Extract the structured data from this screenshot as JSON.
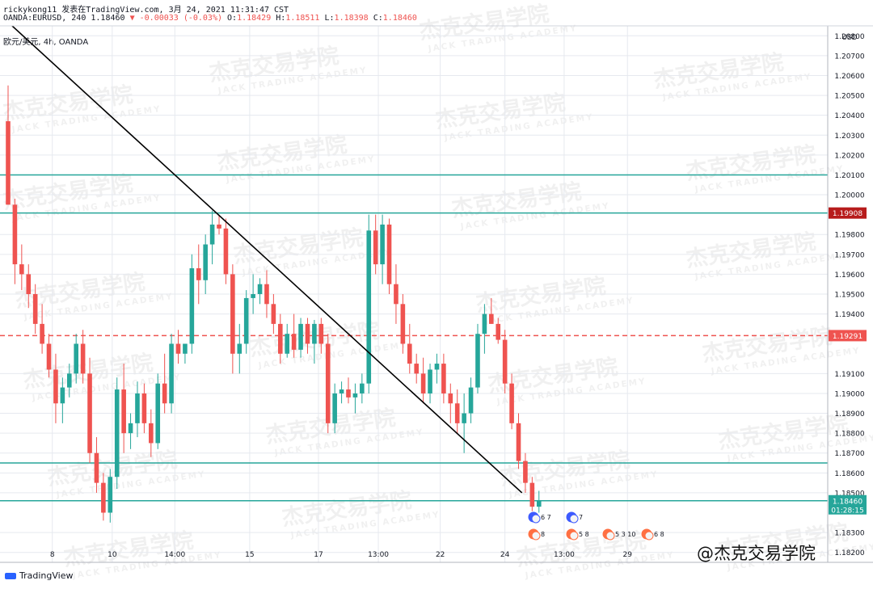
{
  "header": {
    "line1": "rickykong11 发表在TradingView.com, 3月 24, 2021 11:31:47 CST",
    "symbol": "OANDA:EURUSD, 240",
    "last": "1.18460",
    "change": "-0.00033 (-0.03%)",
    "open_label": "O:",
    "open": "1.18429",
    "high_label": "H:",
    "high": "1.18511",
    "low_label": "L:",
    "low": "1.18398",
    "close_label": "C:",
    "close": "1.18460",
    "legend": "欧元/美元, 4h, OANDA"
  },
  "branding": {
    "platform": "TradingView",
    "handle": "@杰克交易学院"
  },
  "watermark": {
    "cn": "杰克交易学院",
    "en": "JACK TRADING ACADEMY"
  },
  "colors": {
    "up": "#26a69a",
    "down": "#ef5350",
    "level": "#26a69a",
    "dashed": "#ef5350",
    "trendline": "#000000",
    "grid": "#e6e9ef"
  },
  "chart_data": {
    "type": "candlestick",
    "ylim": [
      1.1815,
      1.2085
    ],
    "currency_label": "USD",
    "y_ticks": [
      "1.20800",
      "1.20700",
      "1.20600",
      "1.20500",
      "1.20400",
      "1.20300",
      "1.20200",
      "1.20100",
      "1.20000",
      "1.19800",
      "1.19700",
      "1.19600",
      "1.19500",
      "1.19400",
      "1.19100",
      "1.19000",
      "1.18900",
      "1.18800",
      "1.18700",
      "1.18600",
      "1.18500",
      "1.18300",
      "1.18200"
    ],
    "x_ticks": [
      "8",
      "10",
      "14:00",
      "15",
      "17",
      "13:00",
      "22",
      "24",
      "13:00",
      "29"
    ],
    "countdown": "01:28:15",
    "price_levels": [
      {
        "value": 1.201,
        "style": "solid",
        "label": ""
      },
      {
        "value": 1.19908,
        "style": "solid",
        "label": "1.19908"
      },
      {
        "value": 1.19291,
        "style": "dashed",
        "label": "1.19291"
      },
      {
        "value": 1.1865,
        "style": "solid",
        "label": ""
      },
      {
        "value": 1.1846,
        "style": "solid",
        "label": "1.18460"
      }
    ],
    "trendline": {
      "from": [
        -1.0,
        1.209
      ],
      "to": [
        75.5,
        1.185
      ]
    },
    "candles": [
      [
        1.2037,
        1.2055,
        1.1995,
        1.1995
      ],
      [
        1.1995,
        1.1998,
        1.1955,
        1.1965
      ],
      [
        1.1965,
        1.1975,
        1.1952,
        1.196
      ],
      [
        1.196,
        1.1965,
        1.1943,
        1.195
      ],
      [
        1.195,
        1.1955,
        1.193,
        1.1935
      ],
      [
        1.1935,
        1.1945,
        1.192,
        1.1925
      ],
      [
        1.1925,
        1.193,
        1.1908,
        1.1912
      ],
      [
        1.1912,
        1.192,
        1.1885,
        1.1895
      ],
      [
        1.1895,
        1.1908,
        1.1885,
        1.1903
      ],
      [
        1.1903,
        1.1915,
        1.1898,
        1.191
      ],
      [
        1.191,
        1.193,
        1.1905,
        1.1925
      ],
      [
        1.1925,
        1.1932,
        1.1905,
        1.191
      ],
      [
        1.191,
        1.1918,
        1.1865,
        1.187
      ],
      [
        1.187,
        1.1878,
        1.185,
        1.1855
      ],
      [
        1.1855,
        1.186,
        1.1836,
        1.184
      ],
      [
        1.184,
        1.1862,
        1.1835,
        1.1858
      ],
      [
        1.1858,
        1.1908,
        1.1852,
        1.1902
      ],
      [
        1.1902,
        1.1915,
        1.187,
        1.188
      ],
      [
        1.188,
        1.189,
        1.1872,
        1.1885
      ],
      [
        1.1885,
        1.1906,
        1.1878,
        1.19
      ],
      [
        1.19,
        1.1905,
        1.188,
        1.1885
      ],
      [
        1.1885,
        1.1892,
        1.1868,
        1.1875
      ],
      [
        1.1875,
        1.191,
        1.1872,
        1.1905
      ],
      [
        1.1905,
        1.192,
        1.189,
        1.1895
      ],
      [
        1.1895,
        1.193,
        1.189,
        1.1925
      ],
      [
        1.1925,
        1.1932,
        1.1915,
        1.192
      ],
      [
        1.192,
        1.1925,
        1.1915,
        1.1925
      ],
      [
        1.1925,
        1.197,
        1.192,
        1.1963
      ],
      [
        1.1963,
        1.1975,
        1.1945,
        1.1957
      ],
      [
        1.1957,
        1.198,
        1.195,
        1.1975
      ],
      [
        1.1975,
        1.1992,
        1.1965,
        1.1985
      ],
      [
        1.1985,
        1.199,
        1.198,
        1.1983
      ],
      [
        1.1983,
        1.1988,
        1.1955,
        1.196
      ],
      [
        1.196,
        1.1965,
        1.191,
        1.192
      ],
      [
        1.192,
        1.1935,
        1.191,
        1.1925
      ],
      [
        1.1925,
        1.1952,
        1.192,
        1.1948
      ],
      [
        1.1948,
        1.196,
        1.194,
        1.195
      ],
      [
        1.195,
        1.1958,
        1.1945,
        1.1955
      ],
      [
        1.1955,
        1.1962,
        1.1938,
        1.1945
      ],
      [
        1.1945,
        1.195,
        1.193,
        1.1935
      ],
      [
        1.1935,
        1.194,
        1.1915,
        1.192
      ],
      [
        1.192,
        1.1935,
        1.1918,
        1.193
      ],
      [
        1.193,
        1.194,
        1.1918,
        1.1922
      ],
      [
        1.1922,
        1.1938,
        1.1918,
        1.1935
      ],
      [
        1.1935,
        1.1938,
        1.192,
        1.1925
      ],
      [
        1.1925,
        1.1937,
        1.1915,
        1.1935
      ],
      [
        1.1935,
        1.1938,
        1.192,
        1.1925
      ],
      [
        1.1925,
        1.193,
        1.188,
        1.1885
      ],
      [
        1.1885,
        1.1905,
        1.188,
        1.19
      ],
      [
        1.19,
        1.1906,
        1.1895,
        1.1902
      ],
      [
        1.1902,
        1.1908,
        1.1895,
        1.1898
      ],
      [
        1.1898,
        1.1905,
        1.189,
        1.19
      ],
      [
        1.19,
        1.191,
        1.1895,
        1.1905
      ],
      [
        1.1905,
        1.199,
        1.19,
        1.1982
      ],
      [
        1.1982,
        1.199,
        1.196,
        1.1965
      ],
      [
        1.1965,
        1.199,
        1.1955,
        1.1985
      ],
      [
        1.1985,
        1.1988,
        1.195,
        1.1955
      ],
      [
        1.1955,
        1.1965,
        1.1935,
        1.1945
      ],
      [
        1.1945,
        1.195,
        1.192,
        1.1925
      ],
      [
        1.1925,
        1.1935,
        1.191,
        1.1915
      ],
      [
        1.1915,
        1.192,
        1.1905,
        1.191
      ],
      [
        1.191,
        1.1918,
        1.1895,
        1.19
      ],
      [
        1.19,
        1.1915,
        1.1895,
        1.1912
      ],
      [
        1.1912,
        1.192,
        1.1905,
        1.1915
      ],
      [
        1.1915,
        1.192,
        1.1895,
        1.19
      ],
      [
        1.19,
        1.1905,
        1.1885,
        1.1895
      ],
      [
        1.1895,
        1.1902,
        1.188,
        1.1885
      ],
      [
        1.1885,
        1.19,
        1.187,
        1.189
      ],
      [
        1.189,
        1.1908,
        1.1885,
        1.1903
      ],
      [
        1.1903,
        1.1935,
        1.19,
        1.193
      ],
      [
        1.193,
        1.1945,
        1.192,
        1.194
      ],
      [
        1.194,
        1.1948,
        1.1935,
        1.1935
      ],
      [
        1.1935,
        1.1938,
        1.1925,
        1.1927
      ],
      [
        1.1927,
        1.1932,
        1.19,
        1.1905
      ],
      [
        1.1905,
        1.191,
        1.1882,
        1.1885
      ],
      [
        1.1885,
        1.189,
        1.1862,
        1.1866
      ],
      [
        1.1866,
        1.187,
        1.185,
        1.1855
      ],
      [
        1.1855,
        1.1858,
        1.1838,
        1.1843
      ],
      [
        1.1843,
        1.1851,
        1.184,
        1.1846
      ]
    ],
    "event_markers": [
      {
        "flags": "EU",
        "text": "6 7"
      },
      {
        "flags": "US",
        "text": "8"
      },
      {
        "flags": "EU",
        "text": "7"
      },
      {
        "flags": "US",
        "text": "5 8"
      },
      {
        "flags": "US",
        "text": "5 3 10"
      },
      {
        "flags": "US",
        "text": "6 8"
      }
    ]
  }
}
